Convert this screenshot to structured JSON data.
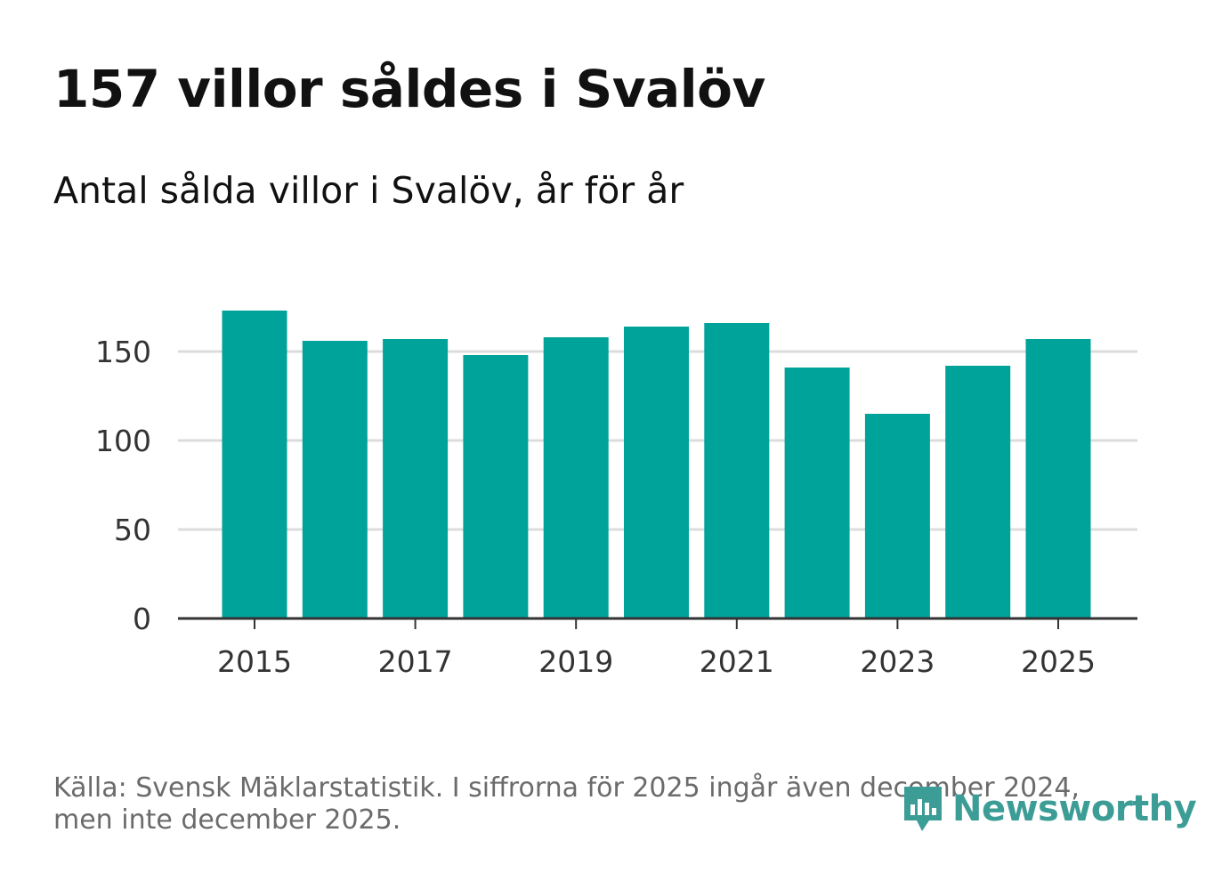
{
  "header": {
    "title": "157 villor såldes i Svalöv",
    "subtitle": "Antal sålda villor i Svalöv, år för år"
  },
  "footer": {
    "source_line1": "Källa: Svensk Mäklarstatistik. I siffrorna för 2025 ingår även december 2024,",
    "source_line2": "men inte december 2025."
  },
  "brand": {
    "name": "Newsworthy",
    "icon": "newsworthy-logo-icon"
  },
  "colors": {
    "bar": "#00a39a",
    "grid": "#dcdcdc",
    "axis": "#333333",
    "brand": "#3c9d96"
  },
  "chart_data": {
    "type": "bar",
    "title": "157 villor såldes i Svalöv",
    "subtitle": "Antal sålda villor i Svalöv, år för år",
    "categories": [
      "2015",
      "2016",
      "2017",
      "2018",
      "2019",
      "2020",
      "2021",
      "2022",
      "2023",
      "2024",
      "2025"
    ],
    "values": [
      173,
      156,
      157,
      148,
      158,
      164,
      166,
      141,
      115,
      142,
      157
    ],
    "xticks": [
      "2015",
      "2017",
      "2019",
      "2021",
      "2023",
      "2025"
    ],
    "yticks": [
      0,
      50,
      100,
      150
    ],
    "ylim": [
      0,
      180
    ],
    "xlabel": "",
    "ylabel": "",
    "grid": true,
    "legend": "none"
  }
}
